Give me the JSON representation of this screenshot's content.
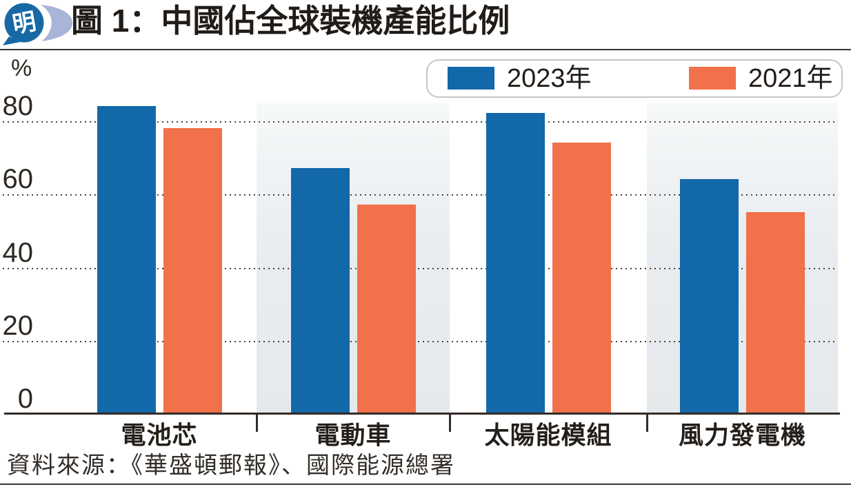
{
  "header": {
    "title": "圖 1：中國佔全球裝機產能比例",
    "logo_char": "明"
  },
  "chart_data": {
    "type": "bar",
    "title": "圖 1：中國佔全球裝機產能比例",
    "unit": "%",
    "categories": [
      "電池芯",
      "電動車",
      "太陽能模組",
      "風力發電機"
    ],
    "series": [
      {
        "name": "2023年",
        "color": "#1368aa",
        "values": [
          84,
          67,
          82,
          64
        ]
      },
      {
        "name": "2021年",
        "color": "#f0714a",
        "values": [
          78,
          57,
          74,
          55
        ]
      }
    ],
    "yticks": [
      80,
      60,
      40,
      20,
      0
    ],
    "ylim": [
      0,
      88
    ],
    "grid": "horizontal-dotted",
    "legend_position": "top-right",
    "shaded_category_indexes": [
      1,
      3
    ]
  },
  "source": {
    "text": "資料來源：《華盛頓郵報》、國際能源總署"
  },
  "colors": {
    "bar_2023": "#1368aa",
    "bar_2021": "#f0714a",
    "band_light": "#e7ebee",
    "grid_dot": "#46403a",
    "axis": "#332c26",
    "text": "#241f1a",
    "legend_border": "#c6c6c6",
    "logo_bubble": "#1769a5",
    "logo_swoosh": "#a8b4d8"
  }
}
